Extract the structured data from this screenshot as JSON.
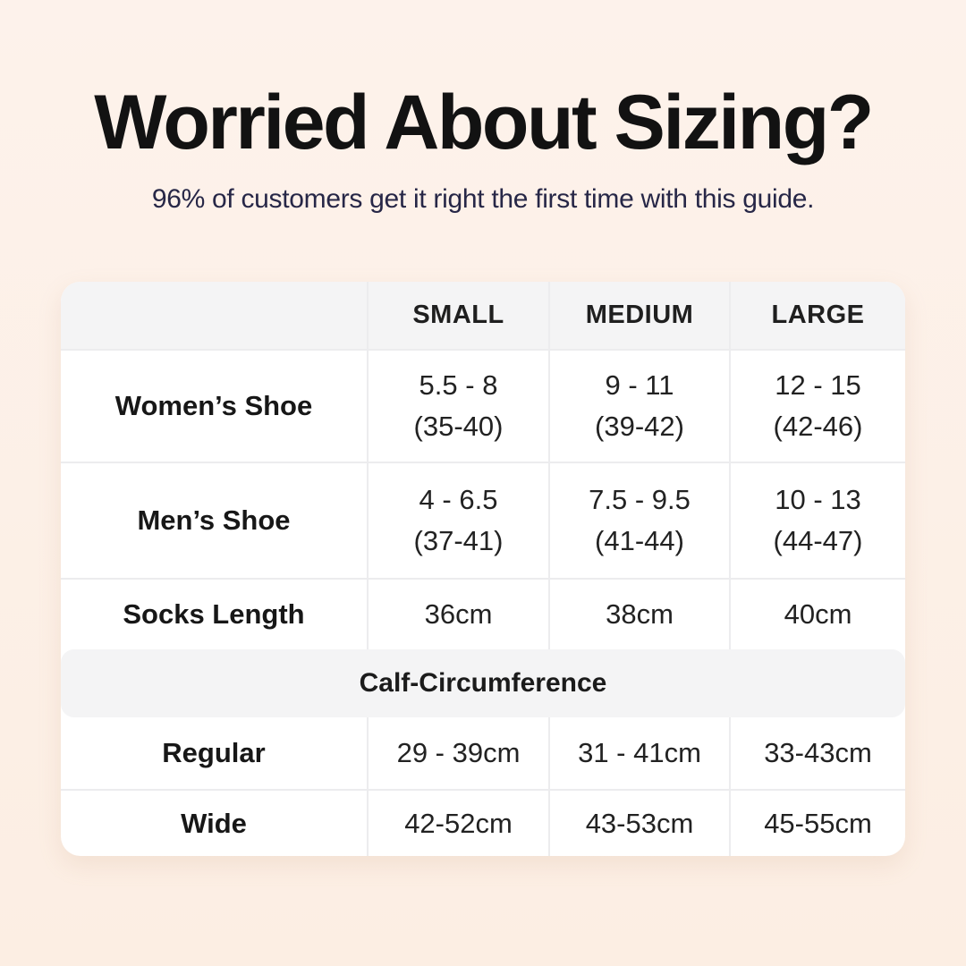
{
  "page": {
    "title": "Worried About Sizing?",
    "subtitle": "96% of customers get it right the first time with this guide.",
    "colors": {
      "background_top": "#fdf2eb",
      "background_bottom": "#fceee3",
      "card": "#ffffff",
      "band_gray": "#f4f4f5",
      "divider": "#ececee",
      "title_text": "#121212",
      "subtitle_text": "#272747",
      "cell_text": "#222222"
    }
  },
  "table": {
    "headers": {
      "small": "SMALL",
      "medium": "MEDIUM",
      "large": "LARGE"
    },
    "womens": {
      "label": "Women’s Shoe",
      "small_line1": "5.5 - 8",
      "small_line2": "(35-40)",
      "medium_line1": "9 - 11",
      "medium_line2": "(39-42)",
      "large_line1": "12 - 15",
      "large_line2": "(42-46)"
    },
    "mens": {
      "label": "Men’s Shoe",
      "small_line1": "4 - 6.5",
      "small_line2": "(37-41)",
      "medium_line1": "7.5 - 9.5",
      "medium_line2": "(41-44)",
      "large_line1": "10 - 13",
      "large_line2": "(44-47)"
    },
    "socks": {
      "label": "Socks Length",
      "small": "36cm",
      "medium": "38cm",
      "large": "40cm"
    },
    "calf_header": "Calf-Circumference",
    "regular": {
      "label": "Regular",
      "small": "29 - 39cm",
      "medium": "31 - 41cm",
      "large": "33-43cm"
    },
    "wide": {
      "label": "Wide",
      "small": "42-52cm",
      "medium": "43-53cm",
      "large": "45-55cm"
    }
  }
}
